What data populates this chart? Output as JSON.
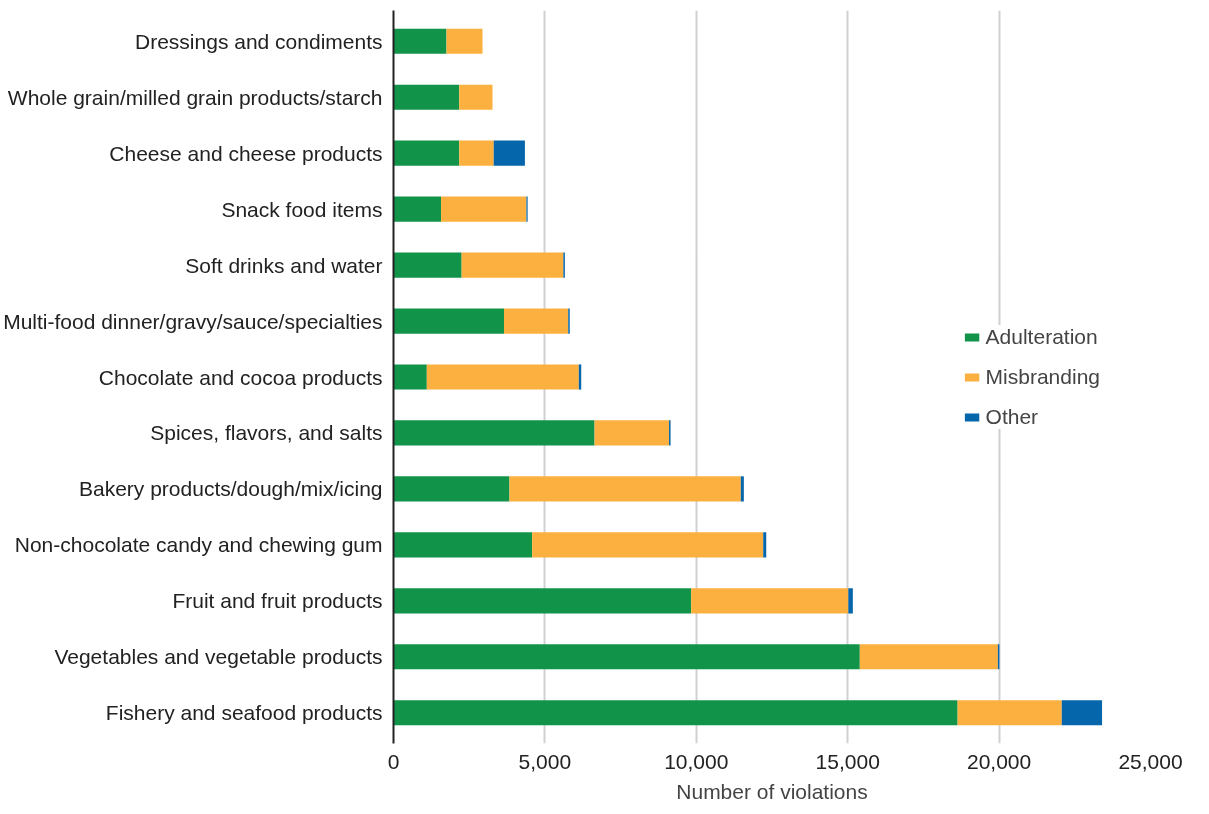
{
  "chart_data": {
    "type": "bar",
    "orientation": "horizontal",
    "stacked": true,
    "xlabel": "Number of violations",
    "categories": [
      "Dressings and condiments",
      "Whole grain/milled grain products/starch",
      "Cheese and cheese products",
      "Snack food items",
      "Soft drinks and water",
      "Multi-food dinner/gravy/sauce/specialties",
      "Chocolate and cocoa products",
      "Spices, flavors, and salts",
      "Bakery products/dough/mix/icing",
      "Non-chocolate candy and chewing gum",
      "Fruit and fruit products",
      "Vegetables and vegetable products",
      "Fishery and seafood products"
    ],
    "series": [
      {
        "name": "Adulteration",
        "color": "#12934a",
        "values": [
          1750,
          2170,
          2170,
          1570,
          2250,
          3650,
          1100,
          6640,
          3830,
          4580,
          9830,
          15400,
          18630
        ]
      },
      {
        "name": "Misbranding",
        "color": "#fbb040",
        "values": [
          1190,
          1100,
          1140,
          2820,
          3360,
          2120,
          5020,
          2460,
          7640,
          7630,
          5190,
          4560,
          3440
        ]
      },
      {
        "name": "Other",
        "color": "#0566ab",
        "values": [
          null,
          null,
          1030,
          40,
          50,
          50,
          80,
          50,
          100,
          100,
          150,
          50,
          1330
        ]
      }
    ],
    "xlim": [
      0,
      25000
    ],
    "xticks": [
      0,
      {
        "value": 5000,
        "label": "5,000"
      },
      {
        "value": 10000,
        "label": "10,000"
      },
      {
        "value": 15000,
        "label": "15,000"
      },
      {
        "value": 20000,
        "label": "20,000"
      },
      {
        "value": 25000,
        "label": "25,000"
      }
    ],
    "grid": "x",
    "legend": "right"
  }
}
